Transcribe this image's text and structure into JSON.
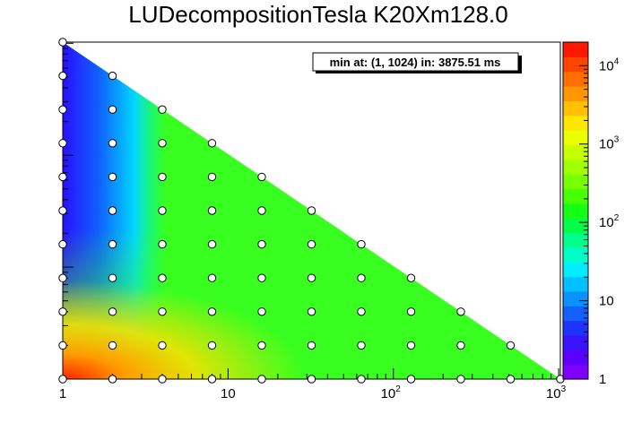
{
  "chart_data": {
    "type": "heatmap",
    "title": "LUDecompositionTesla K20Xm128.0",
    "annotation": "min at: (1, 1024) in: 3875.51 ms",
    "xscale": "log",
    "xlim": [
      1,
      1024
    ],
    "x_ticks": [
      {
        "value": 1,
        "base": "1",
        "exp": ""
      },
      {
        "value": 10,
        "base": "10",
        "exp": ""
      },
      {
        "value": 100,
        "base": "10",
        "exp": "2"
      },
      {
        "value": 1000,
        "base": "10",
        "exp": "3"
      }
    ],
    "y_axis_labels_shown": false,
    "points_x": [
      1,
      2,
      4,
      8,
      16,
      32,
      64,
      128,
      256,
      512,
      1024
    ],
    "points": [
      [
        1,
        1024
      ],
      [
        1,
        512
      ],
      [
        2,
        512
      ],
      [
        1,
        256
      ],
      [
        2,
        256
      ],
      [
        4,
        256
      ],
      [
        1,
        128
      ],
      [
        2,
        128
      ],
      [
        4,
        128
      ],
      [
        8,
        128
      ],
      [
        1,
        64
      ],
      [
        2,
        64
      ],
      [
        4,
        64
      ],
      [
        8,
        64
      ],
      [
        16,
        64
      ],
      [
        1,
        32
      ],
      [
        2,
        32
      ],
      [
        4,
        32
      ],
      [
        8,
        32
      ],
      [
        16,
        32
      ],
      [
        32,
        32
      ],
      [
        1,
        16
      ],
      [
        2,
        16
      ],
      [
        4,
        16
      ],
      [
        8,
        16
      ],
      [
        16,
        16
      ],
      [
        32,
        16
      ],
      [
        64,
        16
      ],
      [
        1,
        8
      ],
      [
        2,
        8
      ],
      [
        4,
        8
      ],
      [
        8,
        8
      ],
      [
        16,
        8
      ],
      [
        32,
        8
      ],
      [
        64,
        8
      ],
      [
        128,
        8
      ],
      [
        1,
        4
      ],
      [
        2,
        4
      ],
      [
        4,
        4
      ],
      [
        8,
        4
      ],
      [
        16,
        4
      ],
      [
        32,
        4
      ],
      [
        64,
        4
      ],
      [
        128,
        4
      ],
      [
        256,
        4
      ],
      [
        1,
        2
      ],
      [
        2,
        2
      ],
      [
        4,
        2
      ],
      [
        8,
        2
      ],
      [
        16,
        2
      ],
      [
        32,
        2
      ],
      [
        64,
        2
      ],
      [
        128,
        2
      ],
      [
        256,
        2
      ],
      [
        512,
        2
      ],
      [
        1,
        1
      ],
      [
        2,
        1
      ],
      [
        4,
        1
      ],
      [
        8,
        1
      ],
      [
        16,
        1
      ],
      [
        32,
        1
      ],
      [
        64,
        1
      ],
      [
        128,
        1
      ],
      [
        256,
        1
      ],
      [
        512,
        1
      ],
      [
        1024,
        1
      ]
    ],
    "colorbar": {
      "scale": "log",
      "range": [
        1,
        20000
      ],
      "ticks": [
        {
          "value": 1,
          "base": "1",
          "exp": ""
        },
        {
          "value": 10,
          "base": "10",
          "exp": ""
        },
        {
          "value": 100,
          "base": "10",
          "exp": "2"
        },
        {
          "value": 1000,
          "base": "10",
          "exp": "3"
        },
        {
          "value": 10000,
          "base": "10",
          "exp": "4"
        }
      ],
      "colors": [
        "#7f00ff",
        "#5b00ff",
        "#3a14ff",
        "#1f33ff",
        "#1460ff",
        "#0a90ff",
        "#00c0ff",
        "#00ecff",
        "#00ffc8",
        "#00ff8c",
        "#00ff46",
        "#14ff14",
        "#46ff00",
        "#78ff00",
        "#a0ff00",
        "#c8ff00",
        "#ecff00",
        "#ffe600",
        "#ffc000",
        "#ff9800",
        "#ff6e00",
        "#ff4400",
        "#ff1800"
      ]
    }
  }
}
